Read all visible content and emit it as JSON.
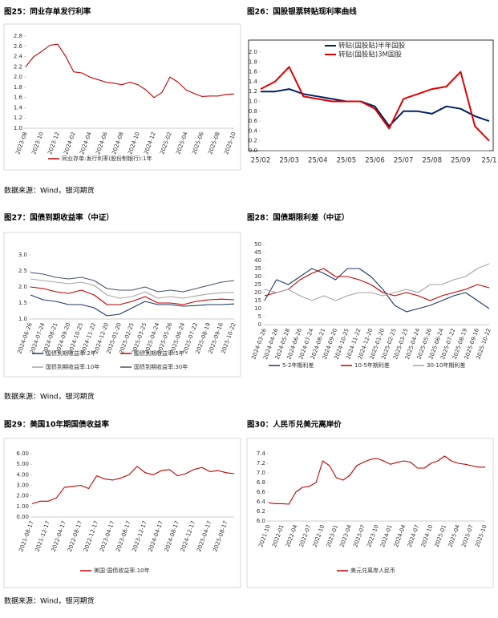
{
  "chart_data": [
    {
      "type": "line",
      "title": "图25：同业存单发行利率",
      "categories": [
        "2023-08",
        null,
        "2023-10",
        null,
        "2023-12",
        null,
        "2024-02",
        null,
        "2024-04",
        null,
        "2024-06",
        null,
        "2024-08",
        null,
        "2024-10",
        null,
        "2024-12",
        null,
        "2025-02",
        null,
        "2025-04",
        null,
        "2025-06",
        null,
        "2025-08",
        null,
        "2025-10"
      ],
      "series": [
        {
          "name": "同业存单:发行利率(股份制银行):1年",
          "color": "#c00000",
          "values": [
            2.2,
            2.4,
            2.5,
            2.62,
            2.64,
            2.4,
            2.1,
            2.08,
            2.0,
            1.95,
            1.9,
            1.88,
            1.85,
            1.9,
            1.85,
            1.75,
            1.6,
            1.7,
            2.0,
            1.9,
            1.75,
            1.68,
            1.62,
            1.63,
            1.63,
            1.66,
            1.67
          ]
        }
      ],
      "ylim": [
        1.0,
        2.8
      ],
      "yticks": [
        {
          "value": 1.0,
          "label": "1.0"
        },
        1.2,
        1.4,
        1.6,
        1.8,
        {
          "value": 2.0,
          "label": "2.0"
        },
        2.2,
        2.4,
        2.6,
        2.8
      ]
    },
    {
      "type": "line",
      "title": "图26：国股银票转贴现利率曲线",
      "categories": [
        "25/02",
        null,
        "25/03",
        null,
        "25/04",
        null,
        "25/05",
        null,
        "25/06",
        null,
        "25/07",
        null,
        "25/08",
        null,
        "25/09",
        null,
        "25/1"
      ],
      "series": [
        {
          "name": "转贴(国股贴)半年国股",
          "color": "#002060",
          "values": [
            1.2,
            1.2,
            1.25,
            1.15,
            1.1,
            1.05,
            1.0,
            1.0,
            0.9,
            0.5,
            0.8,
            0.8,
            0.75,
            0.9,
            0.85,
            0.7,
            0.6
          ]
        },
        {
          "name": "转贴(国股贴)3M国股",
          "color": "#e00000",
          "values": [
            1.25,
            1.4,
            1.7,
            1.1,
            1.05,
            1.0,
            1.0,
            1.0,
            0.85,
            0.45,
            1.05,
            1.15,
            1.25,
            1.3,
            1.6,
            0.5,
            0.2
          ]
        }
      ],
      "ylim": [
        0.0,
        2.0
      ],
      "yticks": [
        {
          "value": 0,
          "label": "0.0"
        },
        0.2,
        0.4,
        0.6,
        0.8,
        {
          "value": 1,
          "label": "1.0"
        },
        1.2,
        1.4,
        1.6,
        1.8,
        {
          "value": 2,
          "label": "2.0"
        }
      ]
    },
    {
      "type": "line",
      "title": "图27：国债到期收益率（中证）",
      "categories": [
        "2024-06-26",
        "2024-07-24",
        "2024-08-21",
        "2024-09-20",
        "2024-10-25",
        "2024-11-22",
        "2024-12-20",
        "2025-01-20",
        "2025-02-25",
        "2025-03-25",
        "2025-04-24",
        "2025-05-26",
        "2025-06-24",
        "2025-07-22",
        "2025-08-19",
        "2025-09-16",
        "2025-10-22"
      ],
      "series": [
        {
          "name": "国债到期收益率:2年",
          "color": "#1f3864",
          "values": [
            1.75,
            1.6,
            1.55,
            1.45,
            1.45,
            1.35,
            1.1,
            1.15,
            1.35,
            1.55,
            1.45,
            1.45,
            1.4,
            1.42,
            1.45,
            1.45,
            1.47
          ]
        },
        {
          "name": "国债到期收益率:5年",
          "color": "#c00000",
          "values": [
            2.0,
            1.95,
            1.85,
            1.8,
            1.9,
            1.75,
            1.45,
            1.45,
            1.55,
            1.7,
            1.5,
            1.5,
            1.45,
            1.55,
            1.6,
            1.62,
            1.6
          ]
        },
        {
          "name": "国债到期收益率:10年",
          "color": "#a6a6a6",
          "values": [
            2.25,
            2.2,
            2.15,
            2.1,
            2.15,
            2.05,
            1.75,
            1.65,
            1.7,
            1.85,
            1.65,
            1.7,
            1.65,
            1.72,
            1.78,
            1.82,
            1.83
          ]
        },
        {
          "name": "国债到期收益率:30年",
          "color": "#44546a",
          "values": [
            2.45,
            2.4,
            2.3,
            2.25,
            2.3,
            2.2,
            1.95,
            1.9,
            1.9,
            2.0,
            1.85,
            1.9,
            1.85,
            1.95,
            2.05,
            2.15,
            2.2
          ]
        }
      ],
      "ylim": [
        1.0,
        3.0
      ],
      "yticks": [
        {
          "value": 1,
          "label": "1.0"
        },
        1.5,
        {
          "value": 2,
          "label": "2.0"
        },
        2.5,
        {
          "value": 3,
          "label": "3.0"
        }
      ]
    },
    {
      "type": "line",
      "title": "图28：国债期限利差（中证）",
      "categories": [
        "2024-03-26",
        "2024-04-26",
        "2024-05-28",
        "2024-06-26",
        "2024-07-24",
        "2024-08-21",
        "2024-09-20",
        "2024-10-25",
        "2024-11-22",
        "2024-12-20",
        "2025-01-20",
        "2025-02-25",
        "2025-03-25",
        "2025-04-24",
        "2025-05-26",
        "2025-06-24",
        "2025-07-22",
        "2025-08-19",
        "2025-09-16",
        "2025-10-22"
      ],
      "series": [
        {
          "name": "5-2年期利差",
          "color": "#1f3864",
          "values": [
            15,
            28,
            25,
            30,
            35,
            32,
            28,
            35,
            35,
            30,
            22,
            12,
            8,
            10,
            12,
            15,
            18,
            20,
            15,
            10
          ]
        },
        {
          "name": "10-5年期利差",
          "color": "#c00000",
          "values": [
            18,
            20,
            22,
            28,
            32,
            35,
            30,
            30,
            28,
            25,
            20,
            18,
            20,
            18,
            15,
            18,
            20,
            22,
            25,
            23
          ]
        },
        {
          "name": "30-10年期利差",
          "color": "#a6a6a6",
          "values": [
            22,
            20,
            22,
            18,
            15,
            18,
            15,
            18,
            20,
            20,
            18,
            20,
            22,
            20,
            25,
            25,
            28,
            30,
            35,
            38
          ]
        }
      ],
      "ylim": [
        0,
        50
      ],
      "yticks": [
        0,
        5,
        10,
        15,
        20,
        25,
        30,
        35,
        40,
        45,
        50
      ]
    },
    {
      "type": "line",
      "title": "图29：美国10年期国债收益率",
      "categories": [
        "2021-08-17",
        null,
        "2021-12-17",
        null,
        "2022-04-17",
        null,
        "2022-08-17",
        null,
        "2022-12-17",
        null,
        "2023-04-17",
        null,
        "2023-08-17",
        null,
        "2023-12-17",
        null,
        "2024-04-17",
        null,
        "2024-08-17",
        null,
        "2024-12-17",
        null,
        "2025-04-17",
        null,
        "2025-08-17",
        null
      ],
      "series": [
        {
          "name": "美国:国债收益率:10年",
          "color": "#c00000",
          "values": [
            1.25,
            1.5,
            1.5,
            1.8,
            2.8,
            2.9,
            3.0,
            2.7,
            3.9,
            3.6,
            3.5,
            3.7,
            4.0,
            4.8,
            4.2,
            4.0,
            4.4,
            4.5,
            3.9,
            4.1,
            4.5,
            4.7,
            4.3,
            4.4,
            4.2,
            4.1
          ]
        }
      ],
      "ylim": [
        0,
        6
      ],
      "yticks": [
        {
          "value": 0,
          "label": "0.00"
        },
        {
          "value": 1,
          "label": "1.00"
        },
        {
          "value": 2,
          "label": "2.00"
        },
        {
          "value": 3,
          "label": "3.00"
        },
        {
          "value": 4,
          "label": "4.00"
        },
        {
          "value": 5,
          "label": "5.00"
        },
        {
          "value": 6,
          "label": "6.00"
        }
      ]
    },
    {
      "type": "line",
      "title": "图30：人民币兑美元离岸价",
      "categories": [
        "2021-10",
        null,
        "2022-01",
        null,
        "2022-04",
        null,
        "2022-07",
        null,
        "2022-10",
        null,
        "2023-01",
        null,
        "2023-04",
        null,
        "2023-07",
        null,
        "2023-10",
        null,
        "2024-01",
        null,
        "2024-04",
        null,
        "2024-07",
        null,
        "2024-10",
        null,
        "2025-01",
        null,
        "2025-04",
        null,
        "2025-07",
        null,
        "2025-10"
      ],
      "series": [
        {
          "name": "美元兑离岸人民币",
          "color": "#c00000",
          "values": [
            6.38,
            6.36,
            6.36,
            6.35,
            6.6,
            6.7,
            6.72,
            6.8,
            7.25,
            7.15,
            6.9,
            6.85,
            6.95,
            7.15,
            7.22,
            7.28,
            7.3,
            7.25,
            7.18,
            7.22,
            7.25,
            7.22,
            7.1,
            7.1,
            7.2,
            7.25,
            7.35,
            7.25,
            7.2,
            7.18,
            7.15,
            7.12,
            7.12
          ]
        }
      ],
      "ylim": [
        6.0,
        7.4
      ],
      "yticks": [
        {
          "value": 6,
          "label": "6.0"
        },
        6.2,
        6.4,
        6.6,
        6.8,
        {
          "value": 7,
          "label": "7.0"
        },
        7.2,
        7.4
      ]
    }
  ],
  "sources": [
    "数据来源：Wind，银河期货",
    "数据来源：Wind，银河期货",
    "数据来源：Wind，银河期货"
  ]
}
